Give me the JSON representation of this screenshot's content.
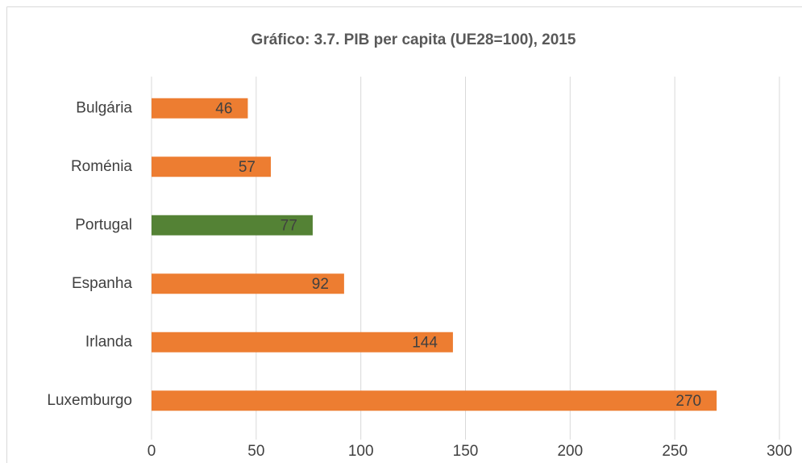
{
  "chart_data": {
    "type": "bar",
    "orientation": "horizontal",
    "title": "Gráfico: 3.7.  PIB  per capita  (UE28=100), 2015",
    "categories": [
      "Bulgária",
      "Roménia",
      "Portugal",
      "Espanha",
      "Irlanda",
      "Luxemburgo"
    ],
    "values": [
      46,
      57,
      77,
      92,
      144,
      270
    ],
    "colors": [
      "#ED7D31",
      "#ED7D31",
      "#548235",
      "#ED7D31",
      "#ED7D31",
      "#ED7D31"
    ],
    "xlim": [
      0,
      300
    ],
    "xticks": [
      0,
      50,
      100,
      150,
      200,
      250,
      300
    ],
    "grid": true
  }
}
